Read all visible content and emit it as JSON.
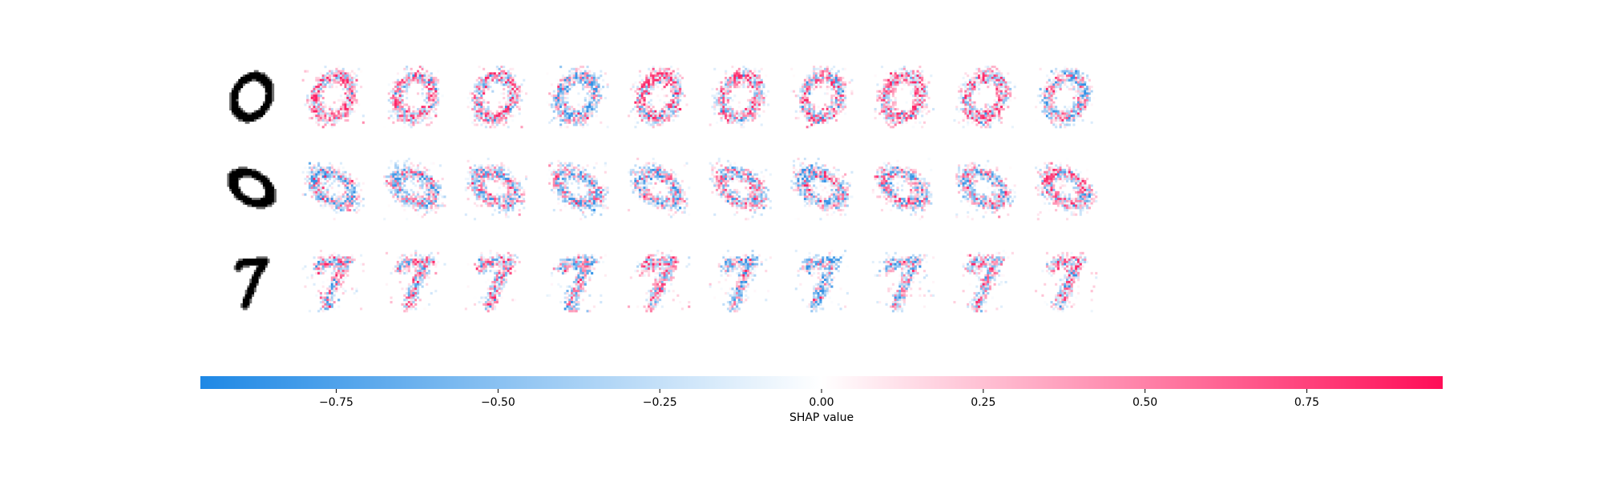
{
  "chart_data": {
    "type": "heatmap",
    "rows": [
      {
        "input_digit": "0",
        "glyph": "zero-upright"
      },
      {
        "input_digit": "0",
        "glyph": "zero-wide"
      },
      {
        "input_digit": "7",
        "glyph": "seven"
      }
    ],
    "explanation_columns": 10,
    "pattern_seeds": [
      [
        11,
        23,
        37,
        41,
        53,
        67,
        79,
        83,
        97,
        101
      ],
      [
        13,
        29,
        31,
        43,
        59,
        61,
        71,
        89,
        103,
        107
      ],
      [
        17,
        19,
        47,
        73,
        109,
        113,
        127,
        131,
        137,
        139
      ]
    ],
    "colorbar": {
      "label": "SHAP value",
      "vmin": -0.96,
      "vmax": 0.96,
      "ticks": [
        -0.75,
        -0.5,
        -0.25,
        0.0,
        0.25,
        0.5,
        0.75
      ],
      "tick_labels": [
        "−0.75",
        "−0.50",
        "−0.25",
        "0.00",
        "0.25",
        "0.50",
        "0.75"
      ],
      "negative_color": "#1e88e5",
      "neutral_color": "#ffffff",
      "positive_color": "#ff0d57"
    }
  }
}
